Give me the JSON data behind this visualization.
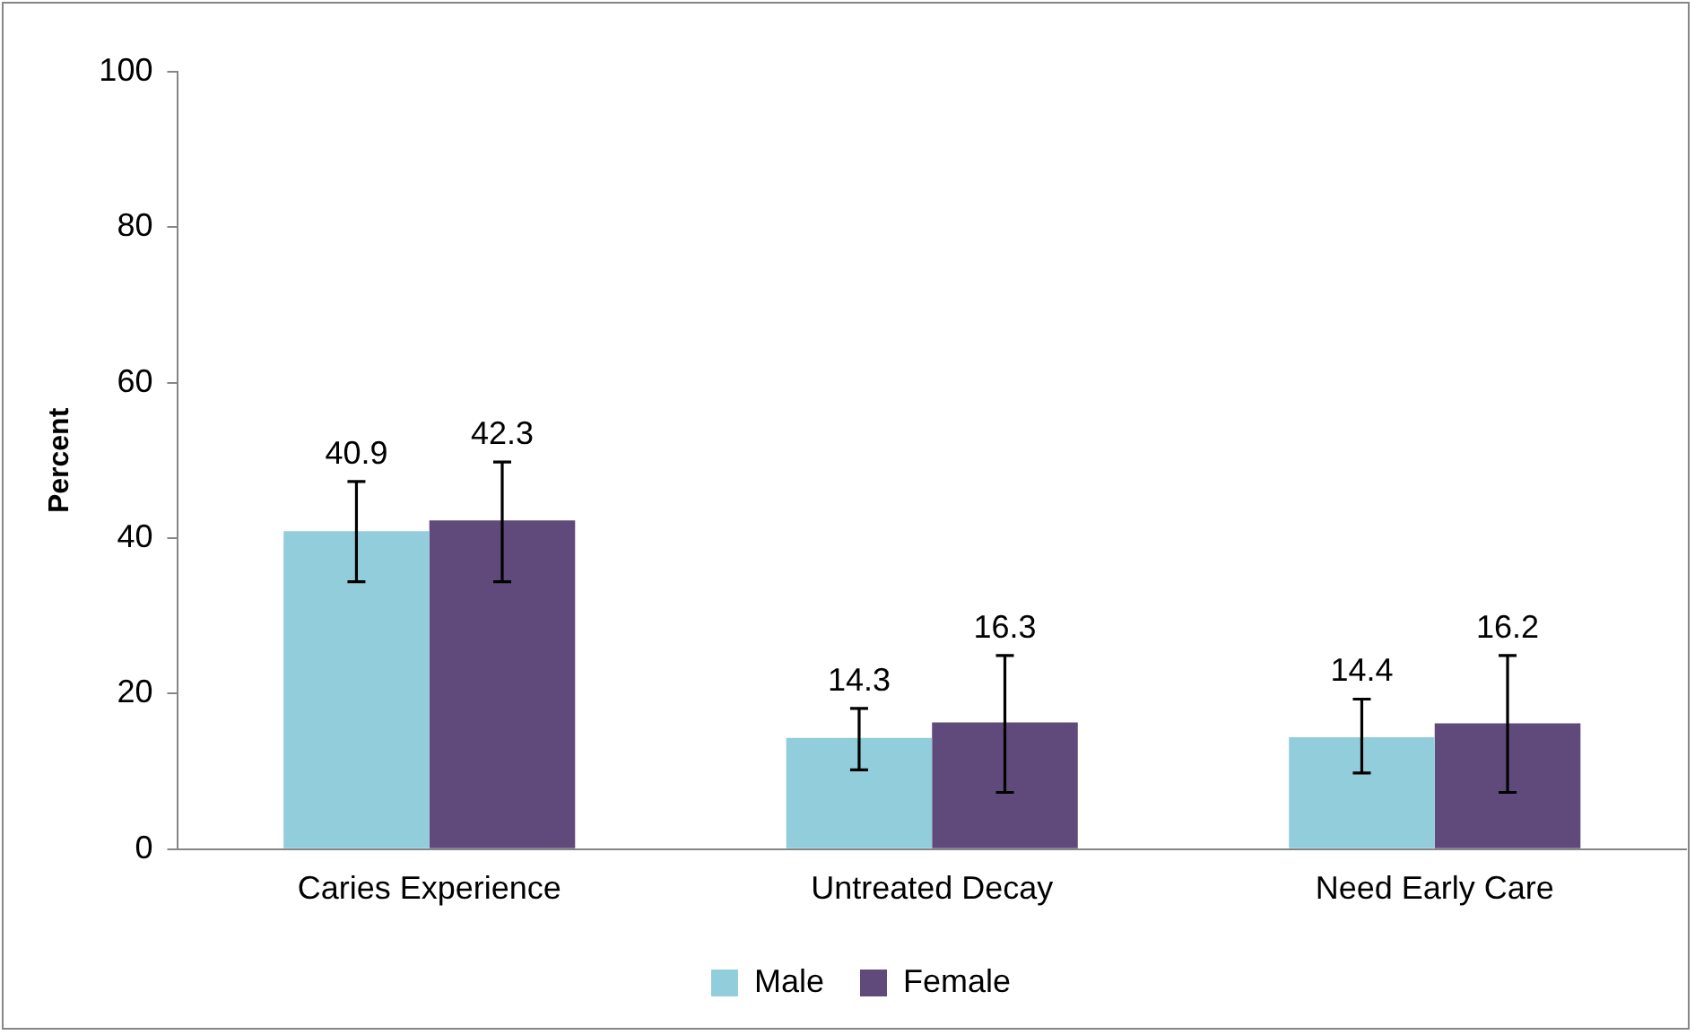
{
  "chart_data": {
    "type": "bar",
    "ylabel": "Percent",
    "categories": [
      "Caries Experience",
      "Untreated Decay",
      "Need Early Care"
    ],
    "series": [
      {
        "name": "Male",
        "color": "#92cddc",
        "values": [
          40.9,
          14.3,
          14.4
        ],
        "errors": [
          [
            34.4,
            47.3
          ],
          [
            10.2,
            18.1
          ],
          [
            9.8,
            19.3
          ]
        ]
      },
      {
        "name": "Female",
        "color": "#604a7b",
        "values": [
          42.3,
          16.3,
          16.2
        ],
        "errors": [
          [
            34.4,
            49.8
          ],
          [
            7.3,
            24.9
          ],
          [
            7.3,
            24.9
          ]
        ]
      }
    ],
    "ylim": [
      0,
      100
    ],
    "yticks": [
      0,
      20,
      40,
      60,
      80,
      100
    ],
    "grid": false,
    "legend": "bottom",
    "data_labels": true
  }
}
